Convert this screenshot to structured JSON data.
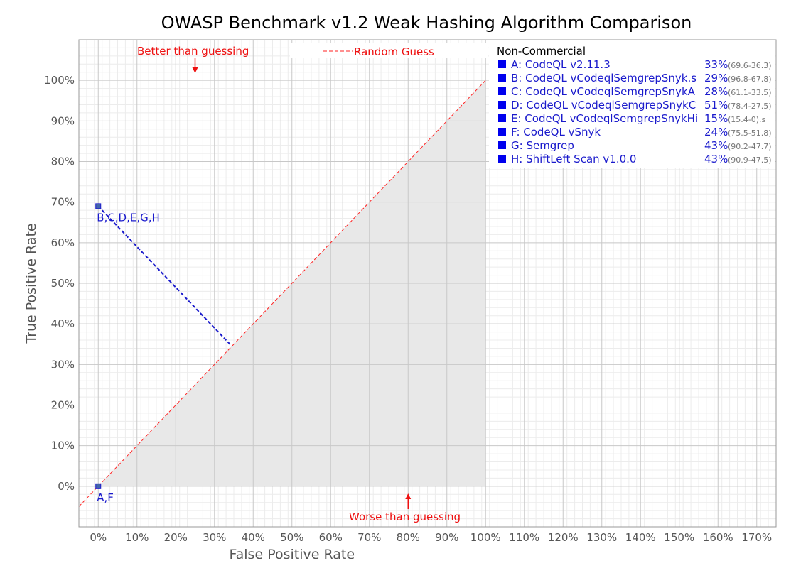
{
  "chart_data": {
    "type": "scatter",
    "title": "OWASP Benchmark v1.2 Weak Hashing Algorithm Comparison",
    "xlabel": "False Positive Rate",
    "ylabel": "True Positive Rate",
    "xlim": [
      -5,
      175
    ],
    "ylim": [
      -10,
      110
    ],
    "x_ticks": [
      0,
      10,
      20,
      30,
      40,
      50,
      60,
      70,
      80,
      90,
      100,
      110,
      120,
      130,
      140,
      150,
      160,
      170
    ],
    "x_tick_labels": [
      "0%",
      "10%",
      "20%",
      "30%",
      "40%",
      "50%",
      "60%",
      "70%",
      "80%",
      "90%",
      "100%",
      "110%",
      "120%",
      "130%",
      "140%",
      "150%",
      "160%",
      "170%"
    ],
    "y_ticks": [
      0,
      10,
      20,
      30,
      40,
      50,
      60,
      70,
      80,
      90,
      100
    ],
    "y_tick_labels": [
      "0%",
      "10%",
      "20%",
      "30%",
      "40%",
      "50%",
      "60%",
      "70%",
      "80%",
      "90%",
      "100%"
    ],
    "grid": true,
    "points": [
      {
        "label": "B,C,D,E,G,H",
        "x": 0,
        "y": 69
      },
      {
        "label": "A,F",
        "x": 0,
        "y": 0
      }
    ],
    "diagonal_label": "Random Guess",
    "annotations": {
      "better": "Better than guessing",
      "worse": "Worse than guessing"
    },
    "legend": {
      "position": "top-right",
      "header": "Non-Commercial",
      "entries": [
        {
          "name": "A: CodeQL v2.11.3",
          "score": "33%",
          "detail": "(69.6-36.3)"
        },
        {
          "name": "B: CodeQL vCodeqlSemgrepSnyk.s",
          "score": "29%",
          "detail": "(96.8-67.8)"
        },
        {
          "name": "C: CodeQL vCodeqlSemgrepSnykA",
          "score": "28%",
          "detail": "(61.1-33.5)"
        },
        {
          "name": "D: CodeQL vCodeqlSemgrepSnykC",
          "score": "51%",
          "detail": "(78.4-27.5)"
        },
        {
          "name": "E: CodeQL vCodeqlSemgrepSnykHi",
          "score": "15%",
          "detail": "(15.4-0).s"
        },
        {
          "name": "F: CodeQL vSnyk",
          "score": "24%",
          "detail": "(75.5-51.8)"
        },
        {
          "name": "G: Semgrep",
          "score": "43%",
          "detail": "(90.2-47.7)"
        },
        {
          "name": "H: ShiftLeft Scan v1.0.0",
          "score": "43%",
          "detail": "(90.9-47.5)"
        }
      ]
    },
    "colors": {
      "points": "#1a1acc",
      "diagonal": "#ff2222",
      "annotation": "#ee1111",
      "shade": "#e8e8e8",
      "grid": "#c8c8c8"
    }
  }
}
